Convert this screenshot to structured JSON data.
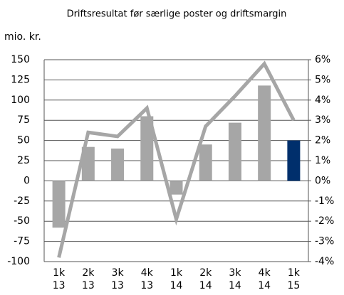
{
  "chart_data": {
    "type": "bar_line",
    "title": "Driftsresultat før særlige poster og driftsmargin",
    "ylabel": "mio. kr.",
    "categories": [
      [
        "1k",
        "13"
      ],
      [
        "2k",
        "13"
      ],
      [
        "3k",
        "13"
      ],
      [
        "4k",
        "13"
      ],
      [
        "1k",
        "14"
      ],
      [
        "2k",
        "14"
      ],
      [
        "3k",
        "14"
      ],
      [
        "4k",
        "14"
      ],
      [
        "1k",
        "15"
      ]
    ],
    "series": [
      {
        "type": "bar",
        "colors": [
          "#a6a6a6",
          "#a6a6a6",
          "#a6a6a6",
          "#a6a6a6",
          "#a6a6a6",
          "#a6a6a6",
          "#a6a6a6",
          "#a6a6a6",
          "#002f6c"
        ],
        "values": [
          -58,
          42,
          40,
          80,
          -17,
          45,
          72,
          118,
          50
        ]
      },
      {
        "type": "line",
        "axis": "y2",
        "color": "#a6a6a6",
        "values": [
          -3.8,
          2.4,
          2.2,
          3.6,
          -1.9,
          2.7,
          4.2,
          5.8,
          3.0
        ]
      }
    ],
    "ylim": [
      -100,
      150
    ],
    "yticks": [
      -100,
      -75,
      -50,
      -25,
      0,
      25,
      50,
      75,
      100,
      125,
      150
    ],
    "y2lim": [
      -4,
      6
    ],
    "y2ticks": [
      {
        "value": -4,
        "label": "-4%"
      },
      {
        "value": -3,
        "label": "-3%"
      },
      {
        "value": -2,
        "label": "-2%"
      },
      {
        "value": -1,
        "label": "-1%"
      },
      {
        "value": 0,
        "label": "0%"
      },
      {
        "value": 1,
        "label": "1%"
      },
      {
        "value": 2,
        "label": "2%"
      },
      {
        "value": 3,
        "label": "3%"
      },
      {
        "value": 4,
        "label": "4%"
      },
      {
        "value": 5,
        "label": "5%"
      },
      {
        "value": 6,
        "label": "6%"
      }
    ],
    "grid": true
  }
}
